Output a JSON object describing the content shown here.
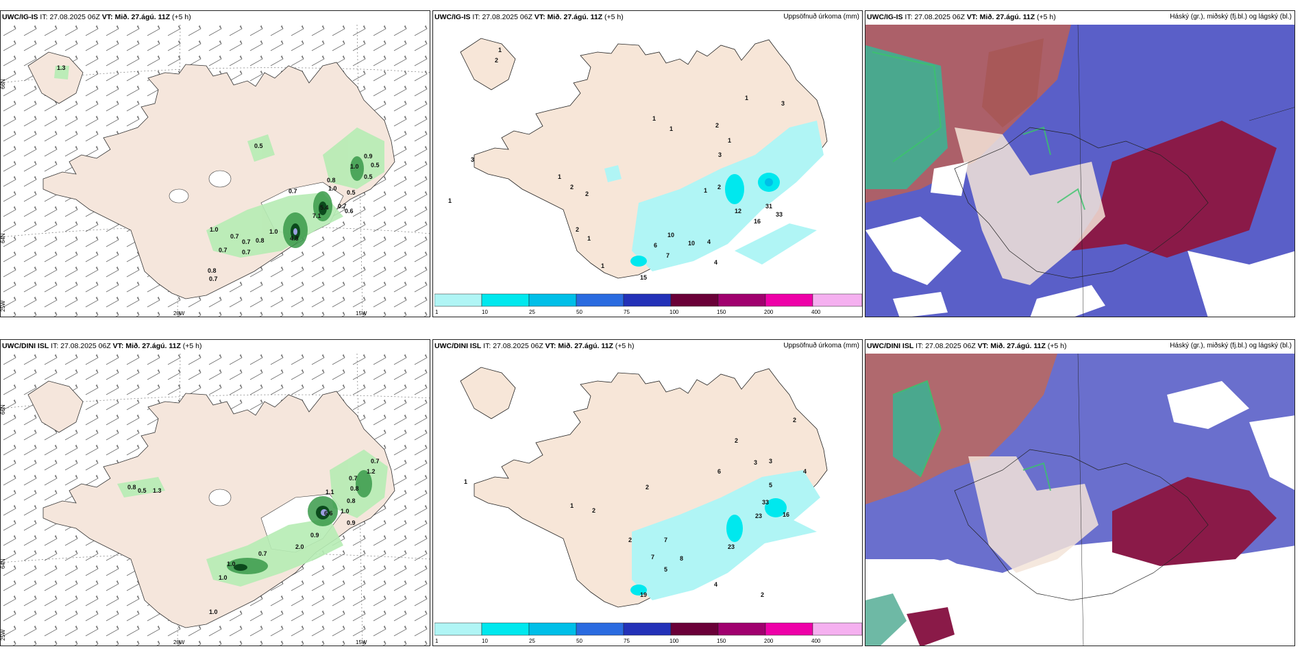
{
  "panels": [
    {
      "model": "UWC/IG-IS",
      "it_label": "IT:",
      "it_value": "27.08.2025 06Z",
      "vt_label": "VT:",
      "vt_value": "Mið. 27.ágú. 11Z",
      "lead": "(+5 h)",
      "right_title": ""
    },
    {
      "model": "UWC/IG-IS",
      "it_label": "IT:",
      "it_value": "27.08.2025 06Z",
      "vt_label": "VT:",
      "vt_value": "Mið. 27.ágú. 11Z",
      "lead": "(+5 h)",
      "right_title": "Uppsöfnuð úrkoma (mm)"
    },
    {
      "model": "UWC/IG-IS",
      "it_label": "IT:",
      "it_value": "27.08.2025 06Z",
      "vt_label": "VT:",
      "vt_value": "Mið. 27.ágú. 11Z",
      "lead": "(+5 h)",
      "right_title": "Háský (gr.), miðský (fj.bl.) og lágský (bl.)"
    },
    {
      "model": "UWC/DINI ISL",
      "it_label": "IT:",
      "it_value": "27.08.2025 06Z",
      "vt_label": "VT:",
      "vt_value": "Mið. 27.ágú. 11Z",
      "lead": "(+5 h)",
      "right_title": ""
    },
    {
      "model": "UWC/DINI ISL",
      "it_label": "IT:",
      "it_value": "27.08.2025 06Z",
      "vt_label": "VT:",
      "vt_value": "Mið. 27.ágú. 11Z",
      "lead": "(+5 h)",
      "right_title": "Uppsöfnuð úrkoma (mm)"
    },
    {
      "model": "UWC/DINI ISL",
      "it_label": "IT:",
      "it_value": "27.08.2025 06Z",
      "vt_label": "VT:",
      "vt_value": "Mið. 27.ágú. 11Z",
      "lead": "(+5 h)",
      "right_title": "Háský (gr.), miðský (fj.bl.) og lágský (bl.)"
    }
  ],
  "axes": {
    "lat_66": "66N",
    "lat_64": "64N",
    "lon_25": "25W",
    "lon_20": "20W",
    "lon_15": "15W"
  },
  "colorbar": {
    "ticks": [
      "1",
      "10",
      "25",
      "50",
      "75",
      "100",
      "150",
      "200",
      "400"
    ],
    "colors": [
      "#b0f5f5",
      "#00e8ee",
      "#00bfe8",
      "#2a6be0",
      "#2331b8",
      "#6a0038",
      "#a0006e",
      "#ee00a8",
      "#f5b0f0"
    ]
  },
  "map_values": {
    "top_left": [
      "1.3",
      "0.5",
      "0.9",
      "0.5",
      "1.0",
      "0.8",
      "0.5",
      "1.0",
      "0.7",
      "0.5",
      "0.6",
      "5.4",
      "7.1",
      "0.7",
      "4.8",
      "1.0",
      "0.7",
      "0.8",
      "0.7",
      "0.7",
      "0.7",
      "0.8",
      "0.7",
      "1.0"
    ],
    "top_mid": [
      "1",
      "2",
      "3",
      "1",
      "1",
      "1",
      "3",
      "3",
      "2",
      "1",
      "2",
      "1",
      "12",
      "2",
      "10",
      "6",
      "4",
      "7",
      "10",
      "31",
      "33",
      "16",
      "4",
      "15",
      "1",
      "2",
      "2",
      "1",
      "1",
      "1",
      "1"
    ],
    "bottom_left": [
      "0.8",
      "0.5",
      "1.3",
      "0.7",
      "1.2",
      "0.7",
      "0.8",
      "1.1",
      "0.8",
      "1.0",
      "0.9",
      "6.6",
      "0.9",
      "2.0",
      "0.7",
      "1.0",
      "1.0",
      "1.0"
    ],
    "bottom_mid": [
      "2",
      "3",
      "6",
      "3",
      "4",
      "5",
      "33",
      "23",
      "16",
      "2",
      "7",
      "7",
      "5",
      "8",
      "23",
      "4",
      "2",
      "19",
      "1",
      "1",
      "2",
      "2",
      "2"
    ]
  }
}
